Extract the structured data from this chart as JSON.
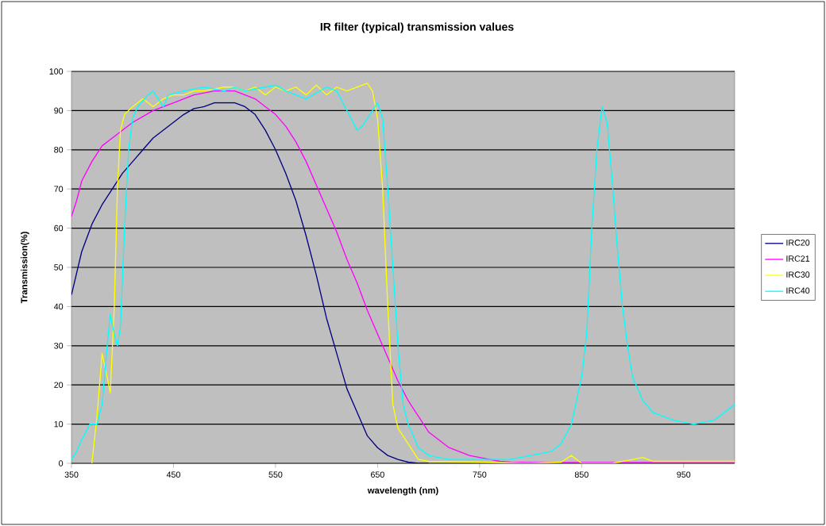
{
  "chart_data": {
    "type": "line",
    "title": "IR filter (typical) transmission values",
    "xlabel": "wavelength (nm)",
    "ylabel": "Transmission(%)",
    "xlim": [
      350,
      1000
    ],
    "xticks": [
      350,
      450,
      550,
      650,
      750,
      850,
      950
    ],
    "ylim": [
      0,
      100
    ],
    "yticks": [
      0,
      10,
      20,
      30,
      40,
      50,
      60,
      70,
      80,
      90,
      100
    ],
    "grid": "y",
    "legend": "right",
    "marker": "none",
    "line_style": "solid",
    "series": [
      {
        "name": "IRC20",
        "color": "#000080",
        "x": [
          350,
          360,
          370,
          380,
          390,
          400,
          410,
          420,
          430,
          440,
          450,
          460,
          470,
          480,
          490,
          500,
          510,
          520,
          530,
          540,
          550,
          560,
          570,
          580,
          590,
          600,
          610,
          620,
          630,
          640,
          650,
          660,
          670,
          680,
          690,
          700
        ],
        "values": [
          43,
          54,
          61,
          66,
          70,
          74,
          77,
          80,
          83,
          85,
          87,
          89,
          90.5,
          91,
          92,
          92,
          92,
          91,
          89,
          85,
          80,
          74,
          67,
          58,
          48,
          37,
          28,
          19,
          13,
          7,
          4,
          2,
          1,
          0.3,
          0,
          0
        ]
      },
      {
        "name": "IRC21",
        "color": "#ff00ff",
        "x": [
          350,
          355,
          360,
          370,
          380,
          390,
          400,
          410,
          420,
          430,
          440,
          450,
          460,
          470,
          480,
          490,
          500,
          510,
          520,
          530,
          540,
          550,
          560,
          570,
          580,
          590,
          600,
          610,
          620,
          630,
          640,
          650,
          660,
          670,
          680,
          690,
          700,
          710,
          720,
          730,
          740,
          750,
          760,
          770,
          780,
          800,
          850,
          900,
          1000
        ],
        "values": [
          63,
          67,
          72,
          77,
          81,
          83,
          85,
          87,
          88.5,
          90,
          91,
          92,
          93,
          94,
          94.5,
          95,
          95,
          95,
          94,
          93,
          91,
          89,
          86,
          82,
          77,
          71,
          65,
          59,
          52,
          46,
          39,
          33,
          27,
          21,
          16,
          12,
          8,
          6,
          4,
          3,
          2,
          1.5,
          1,
          0.5,
          0.3,
          0.2,
          0.2,
          0.2,
          0.2
        ]
      },
      {
        "name": "IRC30",
        "color": "#ffff00",
        "x": [
          370,
          375,
          380,
          385,
          388,
          392,
          395,
          398,
          402,
          410,
          420,
          430,
          440,
          450,
          460,
          470,
          480,
          490,
          500,
          510,
          520,
          530,
          540,
          550,
          560,
          570,
          580,
          590,
          600,
          610,
          620,
          630,
          640,
          645,
          650,
          655,
          660,
          665,
          670,
          680,
          690,
          700,
          750,
          800,
          830,
          840,
          850,
          880,
          900,
          910,
          920,
          1000
        ],
        "values": [
          0,
          12,
          28,
          22,
          18,
          40,
          70,
          85,
          89,
          91,
          93,
          91,
          93,
          94,
          94,
          95,
          95,
          95.5,
          96,
          96,
          95,
          96,
          94,
          96,
          95,
          96,
          94,
          96.5,
          94,
          96,
          95,
          96,
          97,
          95,
          88,
          70,
          40,
          15,
          9,
          5,
          1,
          0.5,
          0.3,
          0,
          0.3,
          2,
          0,
          0,
          1,
          1.5,
          0.5,
          0.5
        ]
      },
      {
        "name": "IRC40",
        "color": "#00ffff",
        "x": [
          350,
          355,
          360,
          368,
          375,
          380,
          385,
          388,
          392,
          395,
          398,
          402,
          406,
          410,
          415,
          425,
          430,
          440,
          445,
          460,
          480,
          500,
          510,
          520,
          540,
          550,
          560,
          580,
          600,
          610,
          620,
          630,
          635,
          640,
          650,
          655,
          660,
          665,
          670,
          675,
          680,
          690,
          700,
          720,
          750,
          780,
          800,
          820,
          830,
          840,
          850,
          855,
          860,
          865,
          870,
          875,
          880,
          885,
          890,
          895,
          900,
          910,
          920,
          940,
          960,
          980,
          1000
        ],
        "values": [
          1,
          3,
          6,
          10,
          10,
          15,
          30,
          38,
          33,
          30,
          35,
          60,
          80,
          88,
          91,
          94,
          95,
          91,
          94,
          95,
          96,
          95,
          96,
          95,
          96,
          96.5,
          95,
          93,
          96,
          95,
          90,
          85,
          86,
          88,
          92,
          88,
          70,
          50,
          30,
          15,
          10,
          4,
          2,
          1,
          1,
          1,
          2,
          3,
          5,
          10,
          22,
          33,
          60,
          80,
          91,
          87,
          72,
          55,
          40,
          30,
          22,
          16,
          13,
          11,
          10,
          11,
          15
        ]
      }
    ]
  }
}
